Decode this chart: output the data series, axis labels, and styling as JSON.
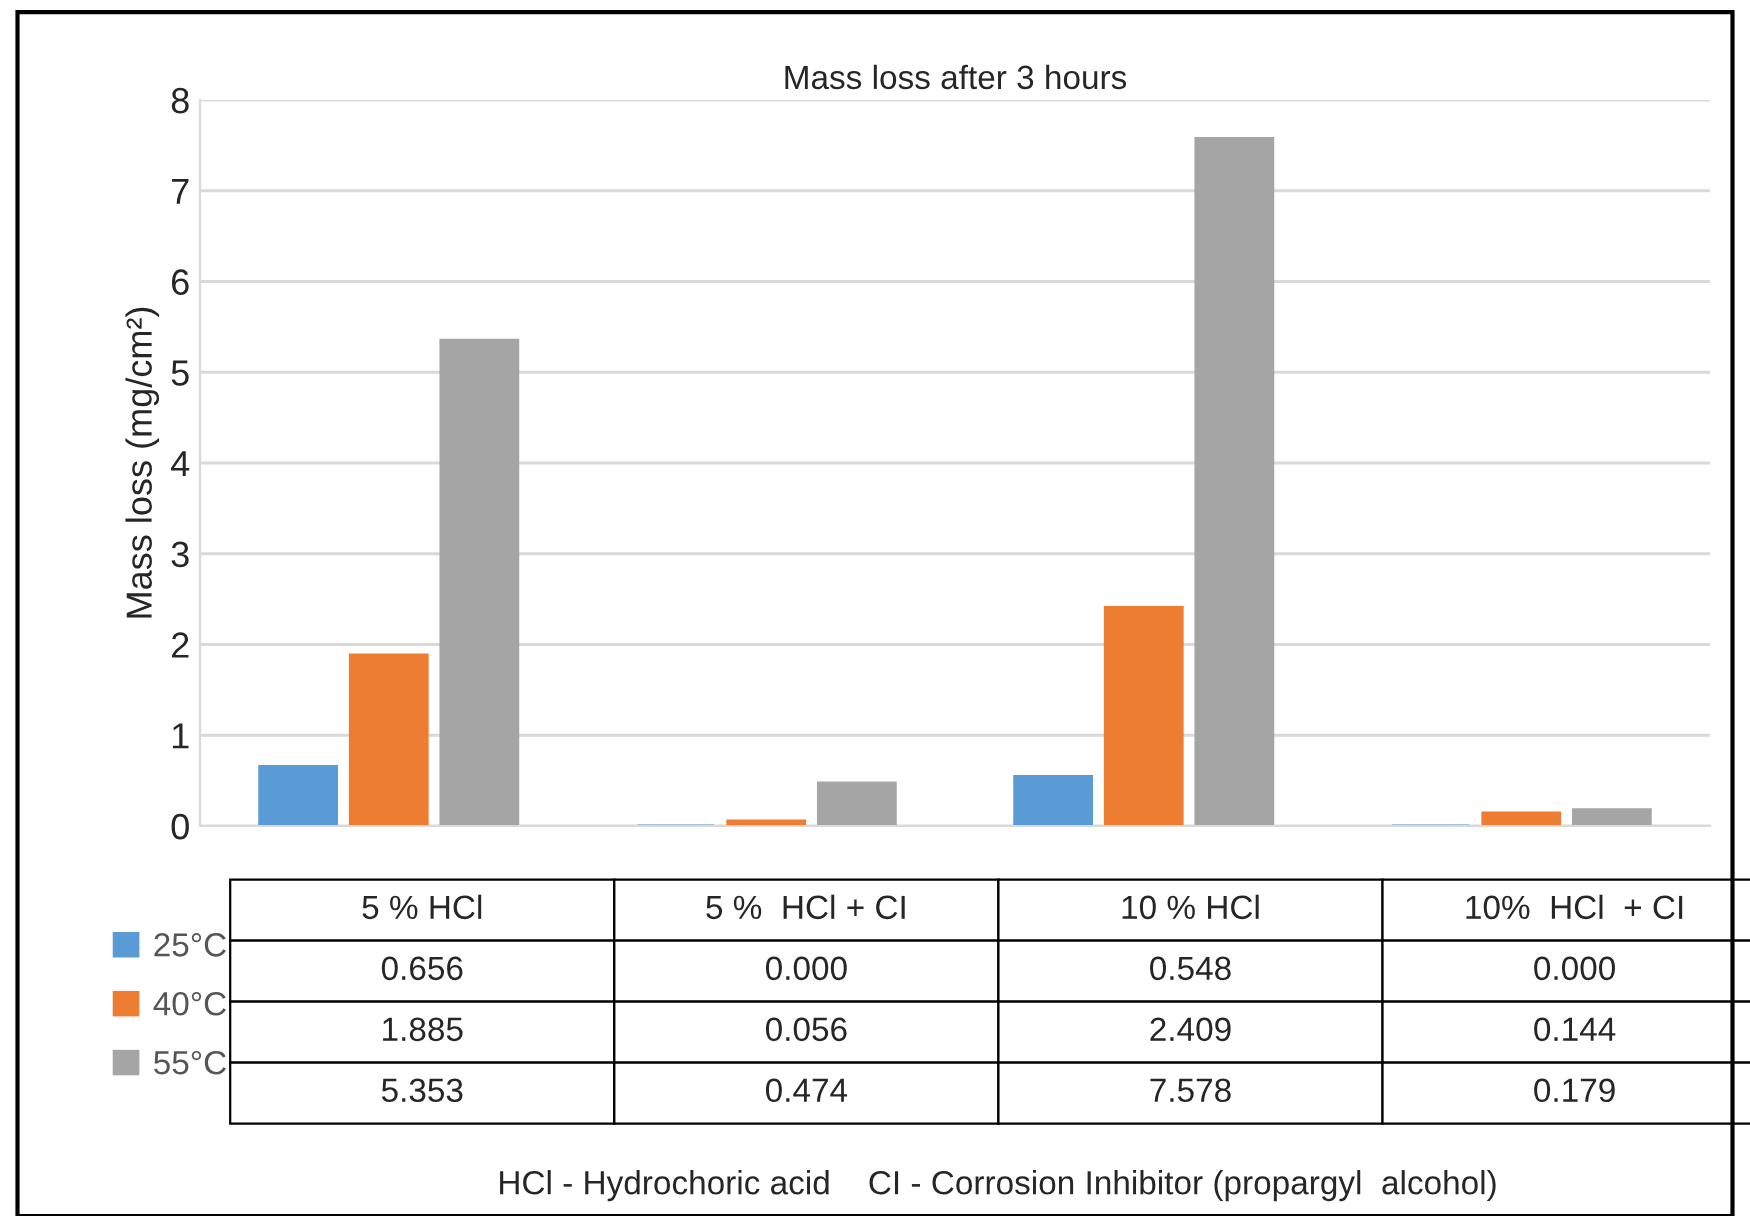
{
  "chart_data": {
    "type": "bar",
    "title": "Mass loss after 3 hours",
    "ylabel": "Mass loss (mg/cm²)",
    "categories": [
      "5 % HCl",
      "5 %  HCl + CI",
      "10 % HCl",
      "10%  HCl  + CI"
    ],
    "series": [
      {
        "name": "25°C",
        "color": "#5b9bd5",
        "values": [
          0.656,
          0.0,
          0.548,
          0.0
        ],
        "value_labels": [
          "0.656",
          "0.000",
          "0.548",
          "0.000"
        ]
      },
      {
        "name": "40°C",
        "color": "#ed7d31",
        "values": [
          1.885,
          0.056,
          2.409,
          0.144
        ],
        "value_labels": [
          "1.885",
          "0.056",
          "2.409",
          "0.144"
        ]
      },
      {
        "name": "55°C",
        "color": "#a5a5a5",
        "values": [
          5.353,
          0.474,
          7.578,
          0.179
        ],
        "value_labels": [
          "5.353",
          "0.474",
          "7.578",
          "0.179"
        ]
      }
    ],
    "ylim": [
      0,
      8
    ],
    "yticks": [
      0,
      1,
      2,
      3,
      4,
      5,
      6,
      7,
      8
    ],
    "grid": "y",
    "legend": "bottom left",
    "tick_labels": "y",
    "annotations": [
      "HCl - Hydrochoric acid    CI - Corrosion Inhibitor (propargyl  alcohol)"
    ]
  }
}
